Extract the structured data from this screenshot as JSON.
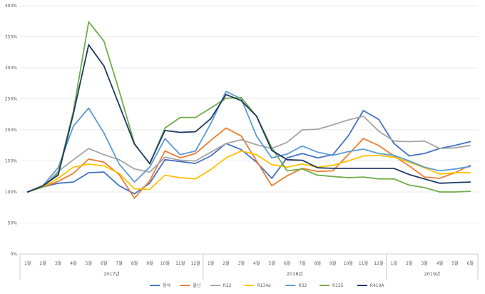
{
  "chart_data": {
    "type": "line",
    "y_ticks": [
      "0%",
      "50%",
      "100%",
      "150%",
      "200%",
      "250%",
      "300%",
      "350%",
      "400%"
    ],
    "ylim": [
      0,
      400
    ],
    "grid": true,
    "legend_position": "bottom",
    "x": [
      "1월",
      "2월",
      "3월",
      "4월",
      "5월",
      "6월",
      "7월",
      "8월",
      "9월",
      "10월",
      "11월",
      "12월",
      "1월",
      "2월",
      "3월",
      "4월",
      "5월",
      "6월",
      "7월",
      "8월",
      "9월",
      "10월",
      "11월",
      "12월",
      "1월",
      "2월",
      "3월",
      "4월",
      "5월",
      "6월"
    ],
    "year_groups": [
      {
        "label": "2017년",
        "start": 0,
        "count": 12
      },
      {
        "label": "2018년",
        "start": 12,
        "count": 12
      },
      {
        "label": "2019년",
        "start": 24,
        "count": 6
      }
    ],
    "series": [
      {
        "name": "형석",
        "color": "#4472C4",
        "values": [
          100,
          108,
          114,
          116,
          131,
          132,
          110,
          97,
          114,
          152,
          149,
          146,
          158,
          178,
          168,
          148,
          122,
          155,
          162,
          155,
          160,
          190,
          231,
          217,
          178,
          158,
          162,
          170,
          175,
          181
        ]
      },
      {
        "name": "불산",
        "color": "#ED7D31",
        "values": [
          100,
          108,
          117,
          130,
          153,
          148,
          128,
          90,
          118,
          166,
          155,
          162,
          183,
          203,
          190,
          150,
          110,
          126,
          138,
          133,
          134,
          160,
          186,
          175,
          158,
          142,
          124,
          122,
          131,
          143
        ]
      },
      {
        "name": "R22",
        "color": "#A5A5A5",
        "values": [
          100,
          108,
          133,
          152,
          170,
          160,
          152,
          137,
          132,
          156,
          151,
          150,
          164,
          178,
          184,
          176,
          170,
          180,
          200,
          201,
          208,
          216,
          222,
          198,
          182,
          181,
          182,
          170,
          171,
          175
        ]
      },
      {
        "name": "R134a",
        "color": "#FFC000",
        "values": [
          100,
          108,
          122,
          140,
          145,
          142,
          130,
          105,
          104,
          127,
          123,
          121,
          136,
          155,
          166,
          160,
          144,
          140,
          145,
          140,
          143,
          150,
          158,
          159,
          156,
          148,
          139,
          129,
          131,
          131
        ]
      },
      {
        "name": "R32",
        "color": "#5B9BD5",
        "values": [
          100,
          110,
          139,
          206,
          235,
          195,
          145,
          116,
          140,
          186,
          160,
          166,
          210,
          262,
          250,
          190,
          155,
          161,
          174,
          164,
          159,
          165,
          169,
          162,
          159,
          150,
          140,
          134,
          137,
          141
        ]
      },
      {
        "name": "R125",
        "color": "#70AD47",
        "values": [
          100,
          108,
          130,
          230,
          374,
          343,
          263,
          178,
          145,
          203,
          220,
          220,
          235,
          251,
          252,
          222,
          171,
          134,
          137,
          127,
          125,
          123,
          124,
          121,
          121,
          111,
          107,
          100,
          100,
          101
        ]
      },
      {
        "name": "R410A",
        "color": "#1F3864",
        "values": [
          100,
          110,
          127,
          226,
          337,
          303,
          240,
          177,
          146,
          199,
          196,
          197,
          218,
          257,
          247,
          222,
          167,
          152,
          151,
          139,
          138,
          138,
          138,
          138,
          138,
          128,
          121,
          114,
          115,
          116
        ]
      }
    ]
  }
}
